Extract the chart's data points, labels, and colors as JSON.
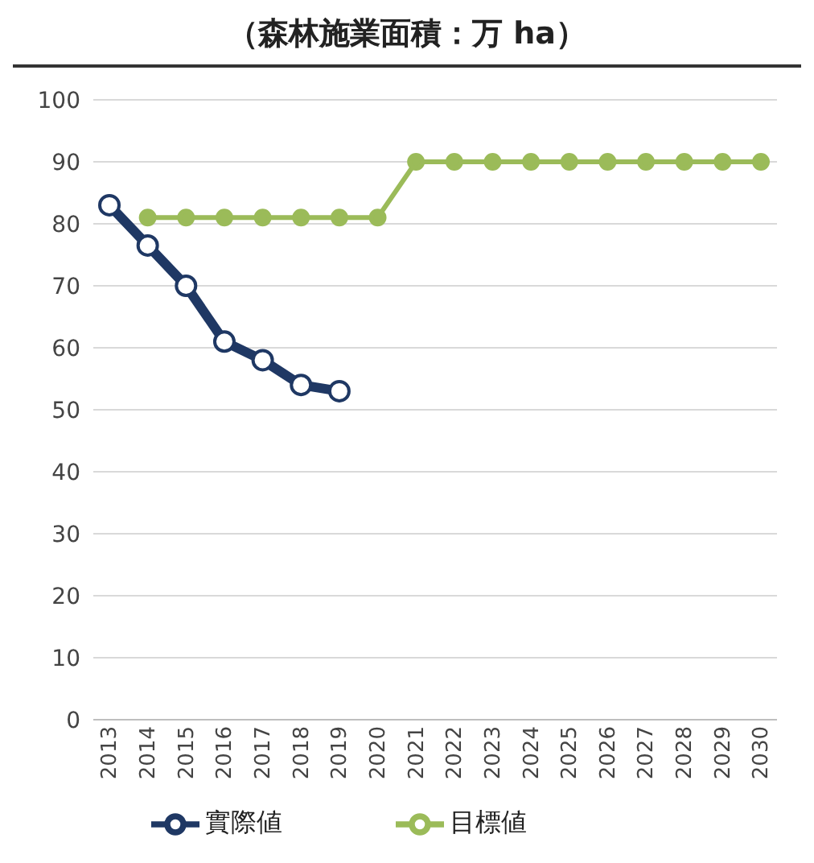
{
  "chart_data": {
    "type": "line",
    "title": "（森林施業面積：万 ha）",
    "categories": [
      "2013",
      "2014",
      "2015",
      "2016",
      "2017",
      "2018",
      "2019",
      "2020",
      "2021",
      "2022",
      "2023",
      "2024",
      "2025",
      "2026",
      "2027",
      "2028",
      "2029",
      "2030"
    ],
    "series": [
      {
        "name": "實際値",
        "color": "#1f3864",
        "values": [
          83,
          76.5,
          70,
          61,
          58,
          54,
          53,
          null,
          null,
          null,
          null,
          null,
          null,
          null,
          null,
          null,
          null,
          null
        ]
      },
      {
        "name": "目標値",
        "color": "#9bbb59",
        "values": [
          null,
          81,
          81,
          81,
          81,
          81,
          81,
          81,
          90,
          90,
          90,
          90,
          90,
          90,
          90,
          90,
          90,
          90
        ]
      }
    ],
    "ylim": [
      0,
      100
    ],
    "yticks": [
      0,
      10,
      20,
      30,
      40,
      50,
      60,
      70,
      80,
      90,
      100
    ],
    "grid": "y",
    "legend": "bottom",
    "marker": "circle",
    "line_style": "solid"
  }
}
